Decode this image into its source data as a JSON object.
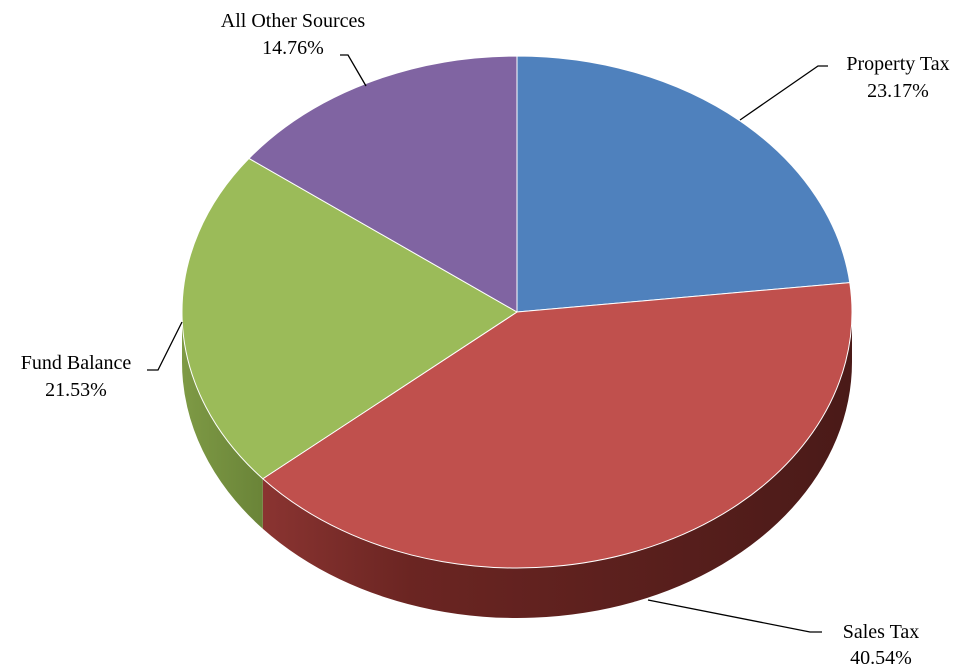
{
  "chart_data": {
    "type": "pie",
    "style": "3d",
    "slices": [
      {
        "name": "Property Tax",
        "value": 23.17,
        "label": "23.17%",
        "color": "#4F81BD"
      },
      {
        "name": "Sales Tax",
        "value": 40.54,
        "label": "40.54%",
        "color": "#C0504D"
      },
      {
        "name": "Fund Balance",
        "value": 21.53,
        "label": "21.53%",
        "color": "#9BBB59"
      },
      {
        "name": "All Other Sources",
        "value": 14.76,
        "label": "14.76%",
        "color": "#8064A2"
      }
    ]
  }
}
